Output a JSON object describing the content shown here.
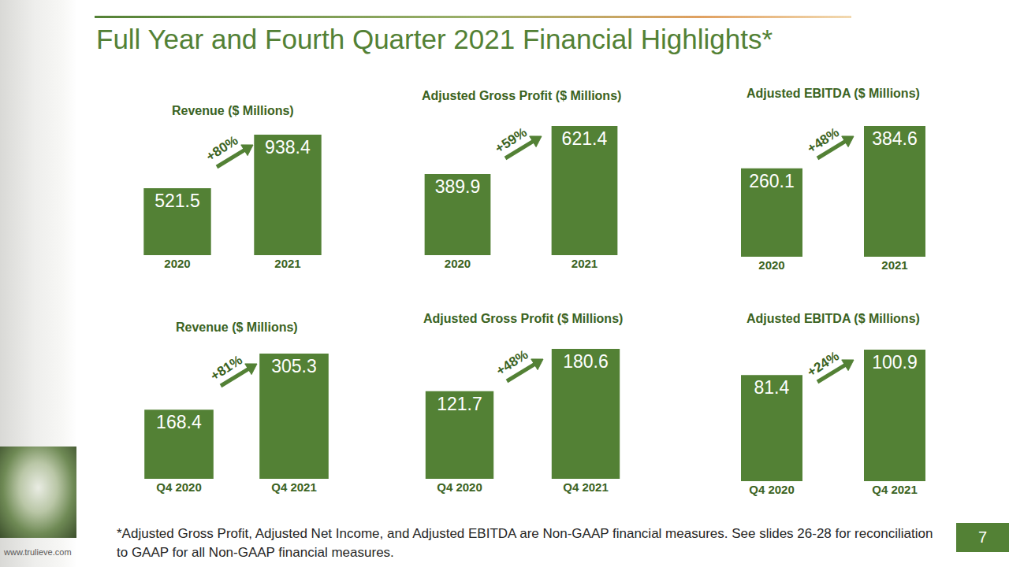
{
  "title": "Full Year and Fourth Quarter 2021 Financial Highlights*",
  "footnote": "*Adjusted Gross Profit, Adjusted Net Income, and Adjusted EBITDA are Non-GAAP financial measures. See slides 26-28 for reconciliation to GAAP for all Non-GAAP financial measures.",
  "website": "www.trulieve.com",
  "page_number": 7,
  "chart_data": [
    {
      "type": "bar",
      "title": "Revenue ($ Millions)",
      "categories": [
        "2020",
        "2021"
      ],
      "values": [
        521.5,
        938.4
      ],
      "color": "#538135",
      "ylim": [
        0,
        938.4
      ],
      "grid": false,
      "data_labels": true,
      "tick_labels": "x",
      "annotation": "+80%"
    },
    {
      "type": "bar",
      "title": "Adjusted Gross Profit ($ Millions)",
      "categories": [
        "2020",
        "2021"
      ],
      "values": [
        389.9,
        621.4
      ],
      "color": "#538135",
      "ylim": [
        0,
        621.4
      ],
      "grid": false,
      "data_labels": true,
      "tick_labels": "x",
      "annotation": "+59%"
    },
    {
      "type": "bar",
      "title": "Adjusted EBITDA ($ Millions)",
      "categories": [
        "2020",
        "2021"
      ],
      "values": [
        260.1,
        384.6
      ],
      "color": "#538135",
      "ylim": [
        0,
        384.6
      ],
      "grid": false,
      "data_labels": true,
      "tick_labels": "x",
      "annotation": "+48%"
    },
    {
      "type": "bar",
      "title": "Revenue ($ Millions)",
      "categories": [
        "Q4 2020",
        "Q4 2021"
      ],
      "values": [
        168.4,
        305.3
      ],
      "color": "#538135",
      "ylim": [
        0,
        305.3
      ],
      "grid": false,
      "data_labels": true,
      "tick_labels": "x",
      "annotation": "+81%"
    },
    {
      "type": "bar",
      "title": "Adjusted Gross Profit ($ Millions)",
      "categories": [
        "Q4 2020",
        "Q4 2021"
      ],
      "values": [
        121.7,
        180.6
      ],
      "color": "#538135",
      "ylim": [
        0,
        180.6
      ],
      "grid": false,
      "data_labels": true,
      "tick_labels": "x",
      "annotation": "+48%"
    },
    {
      "type": "bar",
      "title": "Adjusted EBITDA ($ Millions)",
      "categories": [
        "Q4 2020",
        "Q4 2021"
      ],
      "values": [
        81.4,
        100.9
      ],
      "color": "#538135",
      "ylim": [
        0,
        100.9
      ],
      "grid": false,
      "data_labels": true,
      "tick_labels": "x",
      "annotation": "+24%"
    }
  ]
}
